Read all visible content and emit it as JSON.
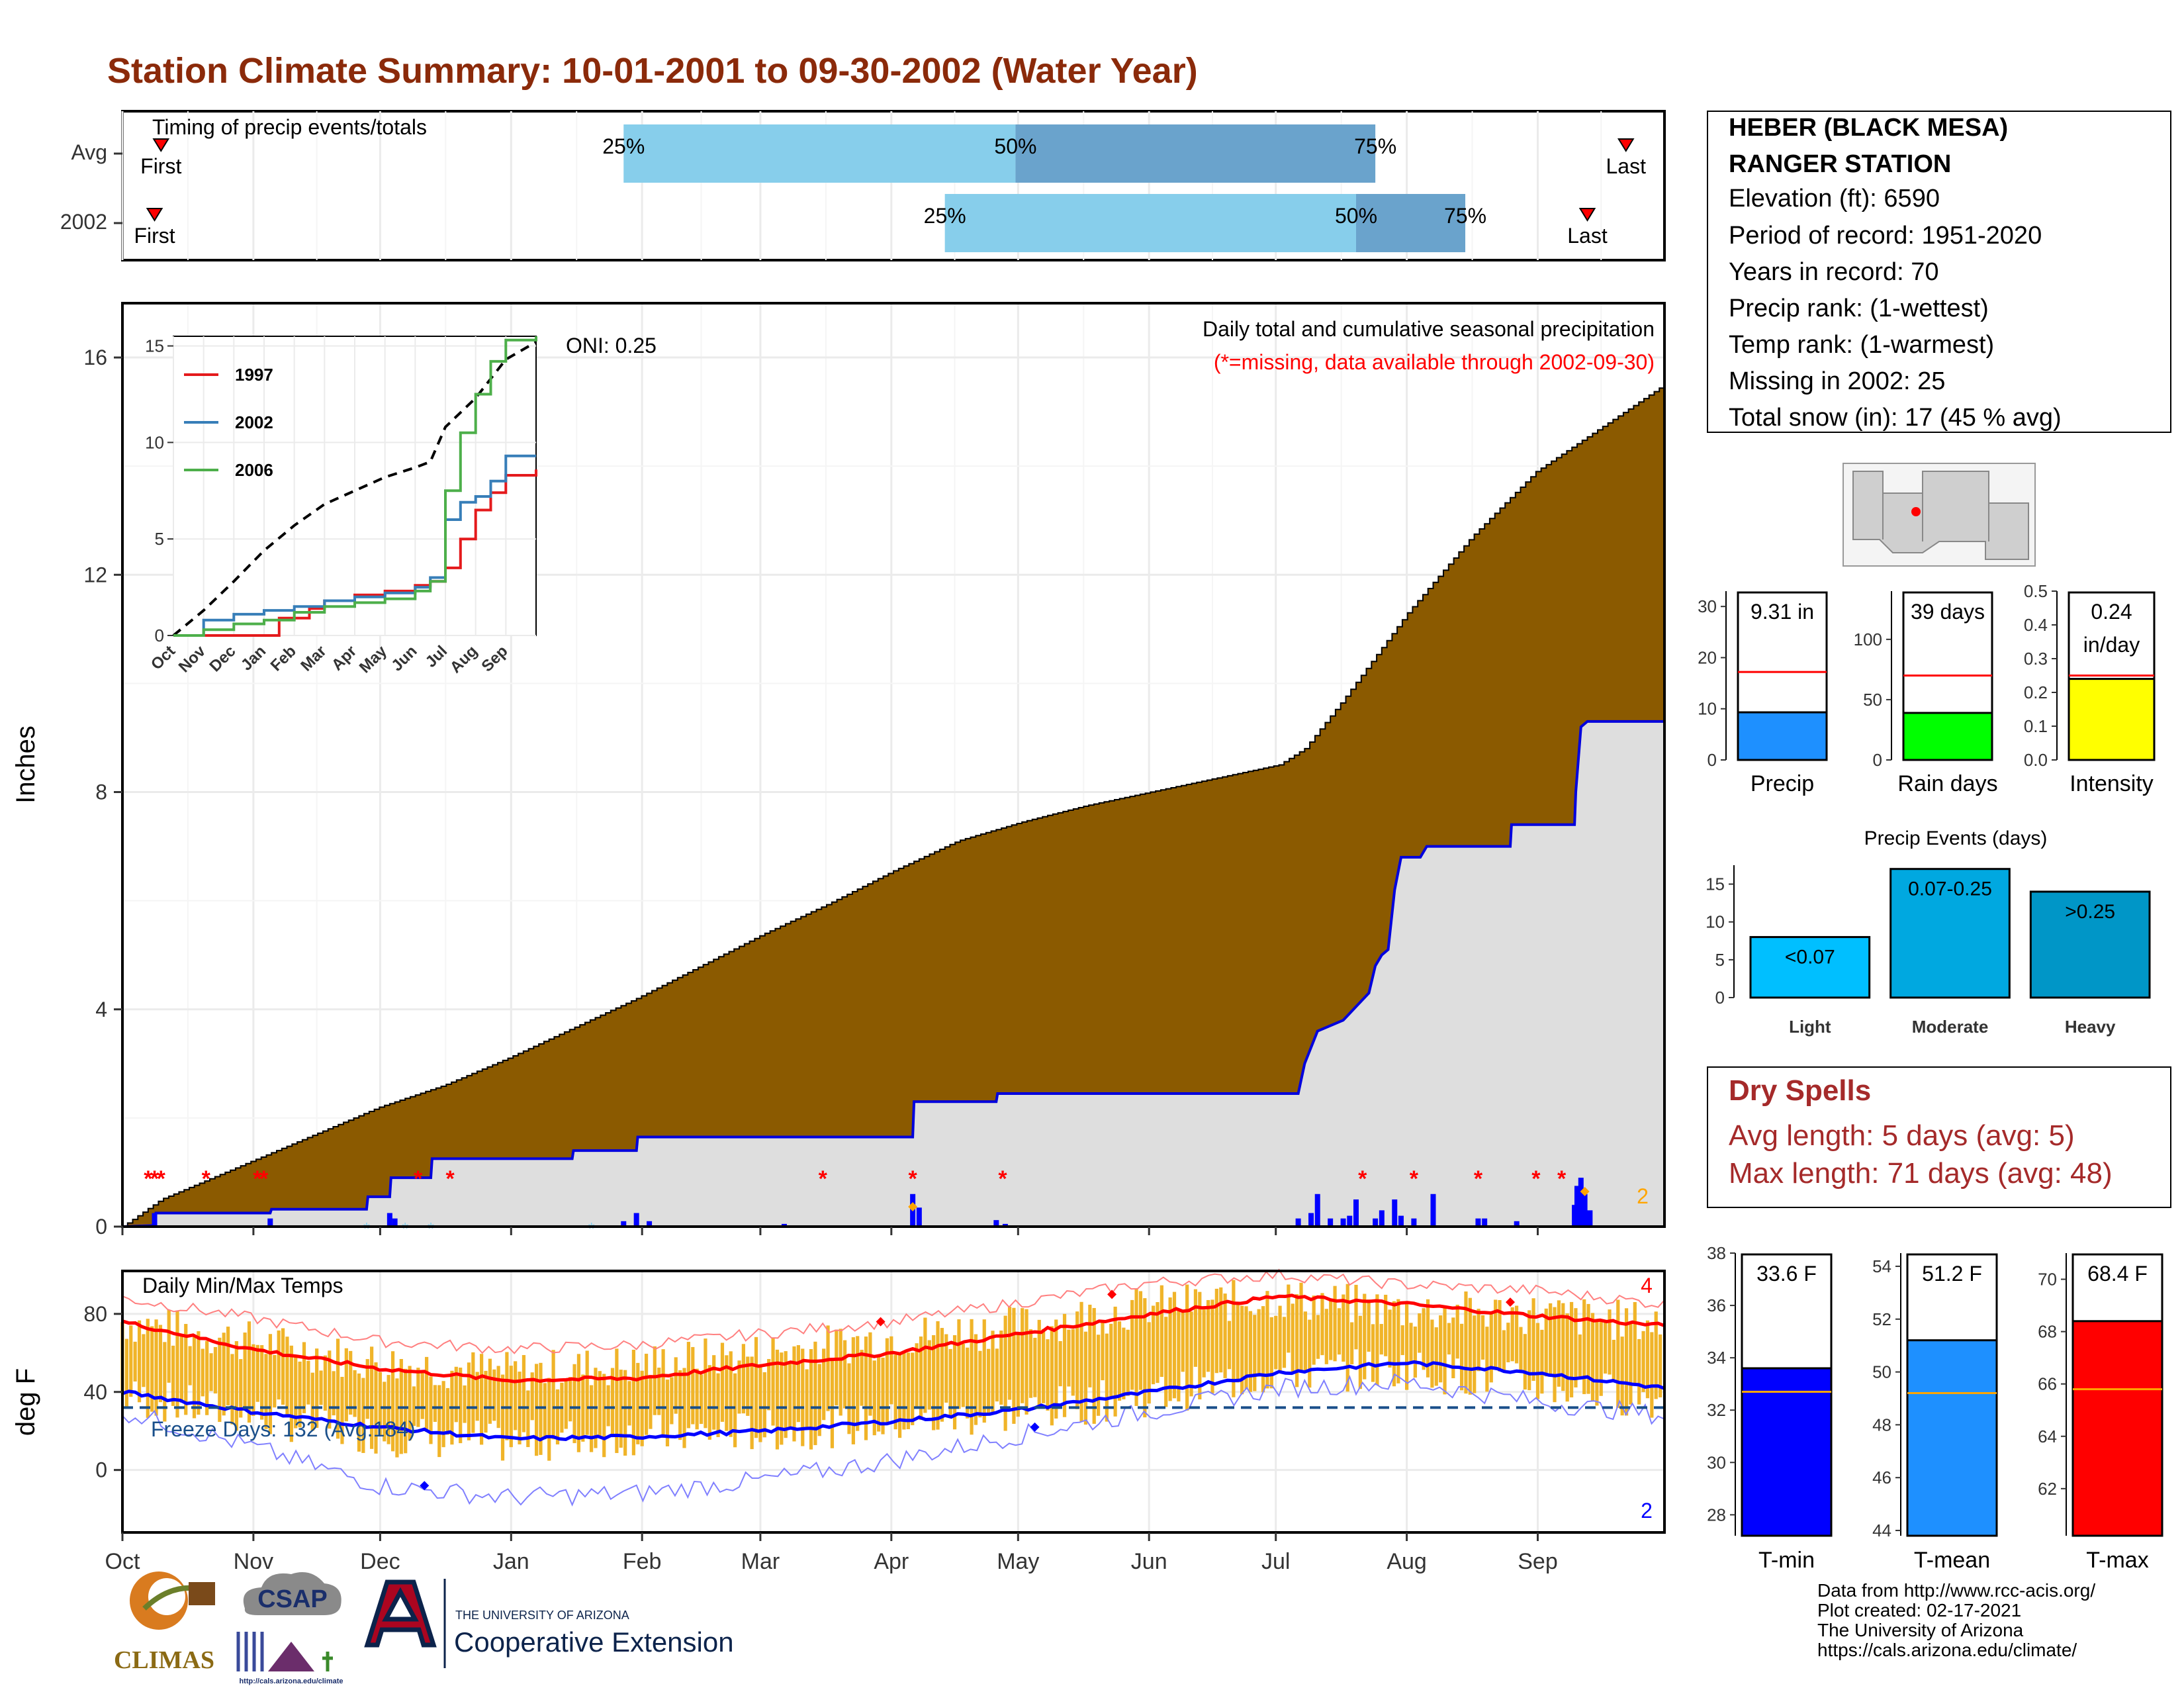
{
  "title": "Station Climate Summary: 10-01-2001 to 09-30-2002 (Water Year)",
  "colors": {
    "title": "#8b2a0a",
    "cumulative_fill": "#8b5a00",
    "avg_light": "#87ceeb",
    "avg_dark": "#6aa3cc",
    "dry_spell": "#a52a2a"
  },
  "timing_panel": {
    "label": "Timing of precip events/totals",
    "rows": [
      {
        "name": "Avg",
        "first_label": "First",
        "last_label": "Last",
        "first_month": 0.3,
        "last_month": 11.7,
        "p25_label": "25%",
        "p50_label": "50%",
        "p75_label": "75%",
        "p25": 3.9,
        "p50": 6.95,
        "p75": 9.75
      },
      {
        "name": "2002",
        "first_label": "First",
        "last_label": "Last",
        "first_month": 0.25,
        "last_month": 11.4,
        "p25_label": "25%",
        "p50_label": "50%",
        "p75_label": "75%",
        "p25": 6.4,
        "p50": 9.6,
        "p75": 10.45
      }
    ]
  },
  "chart_data": [
    {
      "id": "precip_main",
      "type": "area",
      "title": "Daily total and cumulative seasonal precipitation",
      "subtitle": "(*=missing, data available through 2002-09-30)",
      "annotation": "ONI: 0.25",
      "corner_count": "2",
      "ylabel": "Inches",
      "ylim": [
        0,
        17
      ],
      "yticks": [
        "0",
        "4",
        "8",
        "12",
        "16"
      ],
      "x_months": [
        "Oct",
        "Nov",
        "Dec",
        "Jan",
        "Feb",
        "Mar",
        "Apr",
        "May",
        "Jun",
        "Jul",
        "Aug",
        "Sep"
      ],
      "series": [
        {
          "role": "avg_cumulative",
          "x": [
            0,
            0.3,
            1,
            1.5,
            2,
            2.5,
            3,
            3.5,
            4,
            4.5,
            5,
            5.5,
            6,
            6.5,
            7,
            7.5,
            8,
            8.5,
            9,
            9.2,
            9.5,
            10,
            10.5,
            11,
            11.5,
            12
          ],
          "y": [
            0,
            0.5,
            1.2,
            1.7,
            2.2,
            2.6,
            3.1,
            3.65,
            4.2,
            4.8,
            5.4,
            5.95,
            6.55,
            7.1,
            7.45,
            7.75,
            8.0,
            8.25,
            8.5,
            8.8,
            9.7,
            11.3,
            12.7,
            13.9,
            14.7,
            15.5
          ]
        },
        {
          "role": "year_cumulative",
          "x": [
            0,
            0.25,
            0.26,
            1.15,
            1.16,
            1.9,
            1.91,
            2.08,
            2.09,
            2.4,
            2.41,
            3.5,
            3.51,
            4.0,
            4.01,
            6.15,
            6.16,
            6.8,
            6.81,
            9.15,
            9.2,
            9.3,
            9.5,
            9.7,
            9.75,
            9.8,
            9.85,
            9.9,
            9.95,
            10.1,
            10.15,
            10.8,
            10.81,
            11.3,
            11.31,
            11.35,
            11.4,
            12
          ],
          "y": [
            0,
            0.02,
            0.25,
            0.25,
            0.32,
            0.32,
            0.55,
            0.55,
            0.9,
            0.9,
            1.25,
            1.25,
            1.4,
            1.4,
            1.65,
            1.65,
            2.3,
            2.3,
            2.45,
            2.45,
            3.0,
            3.6,
            3.8,
            4.3,
            4.8,
            5.0,
            5.1,
            6.2,
            6.8,
            6.8,
            7.0,
            7.0,
            7.4,
            7.4,
            8.0,
            9.2,
            9.3,
            9.3
          ]
        }
      ],
      "daily_bars": {
        "x": [
          0.25,
          1.15,
          2.08,
          2.12,
          3.9,
          4.0,
          4.1,
          5.15,
          6.15,
          6.2,
          6.8,
          6.87,
          9.15,
          9.25,
          9.3,
          9.4,
          9.5,
          9.55,
          9.6,
          9.75,
          9.8,
          9.9,
          9.95,
          10.05,
          10.2,
          10.55,
          10.6,
          10.85,
          11.3,
          11.32,
          11.35,
          11.38,
          11.42
        ],
        "y": [
          0.25,
          0.15,
          0.25,
          0.15,
          0.1,
          0.25,
          0.1,
          0.05,
          0.6,
          0.35,
          0.12,
          0.05,
          0.15,
          0.25,
          0.6,
          0.15,
          0.15,
          0.2,
          0.5,
          0.15,
          0.3,
          0.5,
          0.2,
          0.15,
          0.6,
          0.15,
          0.15,
          0.1,
          0.4,
          0.75,
          0.9,
          0.6,
          0.3
        ]
      },
      "missing_x": [
        0.2,
        0.25,
        0.3,
        0.65,
        1.05,
        1.1,
        2.3,
        2.55,
        5.45,
        6.15,
        6.85,
        9.65,
        10.05,
        10.55,
        11.0,
        11.2
      ],
      "snow_x": [
        1.9,
        2.2,
        2.4,
        3.65
      ]
    },
    {
      "id": "inset_cumulative",
      "type": "line",
      "x_months": [
        "Oct",
        "Nov",
        "Dec",
        "Jan",
        "Feb",
        "Mar",
        "Apr",
        "May",
        "Jun",
        "Jul",
        "Aug",
        "Sep"
      ],
      "ylim": [
        0,
        15.5
      ],
      "yticks": [
        "0",
        "5",
        "10",
        "15"
      ],
      "series": [
        {
          "name": "",
          "role": "avg",
          "color": "#000000",
          "x": [
            0,
            1,
            2,
            3,
            4,
            5,
            6,
            7,
            8,
            8.5,
            9,
            10,
            11,
            12
          ],
          "y": [
            0,
            1.3,
            2.8,
            4.4,
            5.7,
            6.8,
            7.5,
            8.2,
            8.7,
            9.0,
            10.8,
            12.3,
            14.3,
            15.2
          ]
        },
        {
          "name": "1997",
          "color": "#e41a1c",
          "x": [
            0,
            3,
            3.5,
            4.5,
            5,
            6,
            7,
            8,
            8.5,
            9,
            9.5,
            10,
            10.5,
            11,
            12
          ],
          "y": [
            0,
            0,
            0.9,
            1.4,
            1.8,
            2.1,
            2.3,
            2.6,
            2.8,
            3.5,
            5,
            6.5,
            7.4,
            8.3,
            8.6
          ]
        },
        {
          "name": "2002",
          "color": "#377eb8",
          "x": [
            0,
            1,
            2,
            3,
            4,
            5,
            6,
            7,
            8,
            8.5,
            9,
            9.5,
            10,
            10.5,
            11,
            12
          ],
          "y": [
            0,
            0.8,
            1.1,
            1.3,
            1.5,
            1.8,
            2.0,
            2.2,
            2.5,
            3.0,
            6.0,
            6.9,
            7.2,
            8.0,
            9.3,
            9.3
          ]
        },
        {
          "name": "2006",
          "color": "#4daf4a",
          "x": [
            0,
            1,
            2,
            3,
            4,
            5,
            6,
            7,
            8,
            8.5,
            9,
            9.5,
            10,
            10.5,
            11,
            12
          ],
          "y": [
            0,
            0.3,
            0.6,
            0.8,
            1.2,
            1.5,
            1.7,
            1.9,
            2.3,
            2.8,
            7.5,
            10.5,
            12.5,
            14.2,
            15.3,
            15.5
          ]
        }
      ]
    },
    {
      "id": "daily_temps",
      "type": "bar",
      "title": "Daily Min/Max Temps",
      "ylabel": "deg F",
      "ylim": [
        -32,
        102
      ],
      "yticks": [
        "0",
        "40",
        "80"
      ],
      "freeze_label": "Freeze Days: 132 (Avg:184)",
      "freeze_line": 32,
      "count_top": "4",
      "count_bottom": "2",
      "x_months": [
        "Oct",
        "Nov",
        "Dec",
        "Jan",
        "Feb",
        "Mar",
        "Apr",
        "May",
        "Jun",
        "Jul",
        "Aug",
        "Sep"
      ],
      "avg_max": {
        "x": [
          0,
          1,
          2,
          3,
          4,
          5,
          6,
          7,
          8,
          9,
          10,
          11,
          12
        ],
        "y": [
          76,
          62,
          52,
          46,
          47,
          54,
          60,
          70,
          80,
          89,
          85,
          79,
          74
        ]
      },
      "avg_min": {
        "x": [
          0,
          1,
          2,
          3,
          4,
          5,
          6,
          7,
          8,
          9,
          10,
          11,
          12
        ],
        "y": [
          40,
          30,
          22,
          16,
          17,
          20,
          25,
          31,
          40,
          50,
          55,
          50,
          42
        ]
      },
      "record_high": {
        "x": [
          0,
          1,
          2,
          3,
          4,
          5,
          6,
          7,
          8,
          9,
          10,
          11,
          12
        ],
        "y": [
          88,
          78,
          66,
          62,
          64,
          70,
          76,
          86,
          96,
          100,
          95,
          92,
          85
        ]
      },
      "record_low": {
        "x": [
          0,
          1,
          2,
          3,
          4,
          5,
          6,
          7,
          8,
          9,
          10,
          11,
          12
        ],
        "y": [
          30,
          12,
          -8,
          -14,
          -12,
          -5,
          5,
          18,
          30,
          42,
          45,
          35,
          28
        ]
      },
      "daily_range_smooth": {
        "x": [
          0,
          1,
          2,
          3,
          4,
          5,
          6,
          7,
          8,
          9,
          10,
          11,
          12
        ],
        "max": [
          76,
          66,
          55,
          50,
          54,
          60,
          68,
          74,
          84,
          88,
          82,
          80,
          75
        ],
        "min": [
          38,
          28,
          18,
          14,
          18,
          20,
          24,
          30,
          38,
          50,
          52,
          44,
          36
        ]
      },
      "record_markers": [
        {
          "x": 5.9,
          "y": 76,
          "color": "#ff0000"
        },
        {
          "x": 7.7,
          "y": 90,
          "color": "#ff0000"
        },
        {
          "x": 10.8,
          "y": 86,
          "color": "#ff0000"
        },
        {
          "x": 2.35,
          "y": -8,
          "color": "#0000ff"
        },
        {
          "x": 7.1,
          "y": 22,
          "color": "#0000ff"
        }
      ]
    },
    {
      "id": "precip_bar",
      "type": "bar",
      "value_label": "9.31 in",
      "category": "Precip",
      "value": 9.31,
      "avg": 17.2,
      "ylim": [
        0,
        33
      ],
      "yticks": [
        "0",
        "10",
        "20",
        "30"
      ],
      "color": "#1e90ff"
    },
    {
      "id": "raindays_bar",
      "type": "bar",
      "value_label": "39 days",
      "category": "Rain days",
      "value": 39,
      "avg": 70,
      "ylim": [
        0,
        140
      ],
      "yticks": [
        "0",
        "50",
        "100"
      ],
      "color": "#00ff00"
    },
    {
      "id": "intensity_bar",
      "type": "bar",
      "value_label": "0.24",
      "value_label_2": "in/day",
      "category": "Intensity",
      "value": 0.24,
      "avg": 0.25,
      "ylim": [
        0,
        0.5
      ],
      "yticks": [
        "0.0",
        "0.1",
        "0.2",
        "0.3",
        "0.4",
        "0.5"
      ],
      "color": "#ffff00"
    },
    {
      "id": "precip_events",
      "type": "bar",
      "title": "Precip Events (days)",
      "categories": [
        "Light",
        "Moderate",
        "Heavy"
      ],
      "bar_labels": [
        "<0.07",
        "0.07-0.25",
        ">0.25"
      ],
      "values": [
        8,
        17,
        14
      ],
      "ylim": [
        0,
        17.5
      ],
      "yticks": [
        "0",
        "5",
        "10",
        "15"
      ],
      "colors": [
        "#00bfff",
        "#00a8e0",
        "#0096c7"
      ]
    },
    {
      "id": "tmin_bar",
      "type": "bar",
      "value_label": "33.6 F",
      "category": "T-min",
      "value": 33.6,
      "avg": 32.7,
      "ylim": [
        27.2,
        38
      ],
      "yticks": [
        "28",
        "30",
        "32",
        "34",
        "36",
        "38"
      ],
      "color": "#0000ff"
    },
    {
      "id": "tmean_bar",
      "type": "bar",
      "value_label": "51.2 F",
      "category": "T-mean",
      "value": 51.2,
      "avg": 49.2,
      "ylim": [
        43.8,
        54.5
      ],
      "yticks": [
        "44",
        "46",
        "48",
        "50",
        "52",
        "54"
      ],
      "color": "#1e90ff"
    },
    {
      "id": "tmax_bar",
      "type": "bar",
      "value_label": "68.4 F",
      "category": "T-max",
      "value": 68.4,
      "avg": 65.8,
      "ylim": [
        60.2,
        71
      ],
      "yticks": [
        "62",
        "64",
        "66",
        "68",
        "70"
      ],
      "color": "#ff0000"
    }
  ],
  "station_box": {
    "name_line1": "HEBER (BLACK MESA)",
    "name_line2": "RANGER STATION",
    "lines": [
      "Elevation (ft): 6590",
      "Period of record: 1951-2020",
      "Years in record: 70",
      "Precip rank:  (1-wettest)",
      "Temp rank:  (1-warmest)",
      "Missing in 2002: 25",
      "Total snow (in): 17 (45 % avg)"
    ]
  },
  "dry_spells": {
    "title": "Dry Spells",
    "avg_line": "Avg length: 5 days (avg: 5)",
    "max_line": "Max length: 71 days (avg: 48)"
  },
  "logos": {
    "climas": "CLIMAS",
    "csap": "CSAP",
    "csap_url": "http://cals.arizona.edu/climate",
    "ua_small": "THE UNIVERSITY OF ARIZONA",
    "ua_ext": "Cooperative Extension"
  },
  "footer": {
    "line1": "Data from http://www.rcc-acis.org/",
    "line2": "Plot created: 02-17-2021",
    "line3": "The University of Arizona",
    "line4": "https://cals.arizona.edu/climate/"
  }
}
